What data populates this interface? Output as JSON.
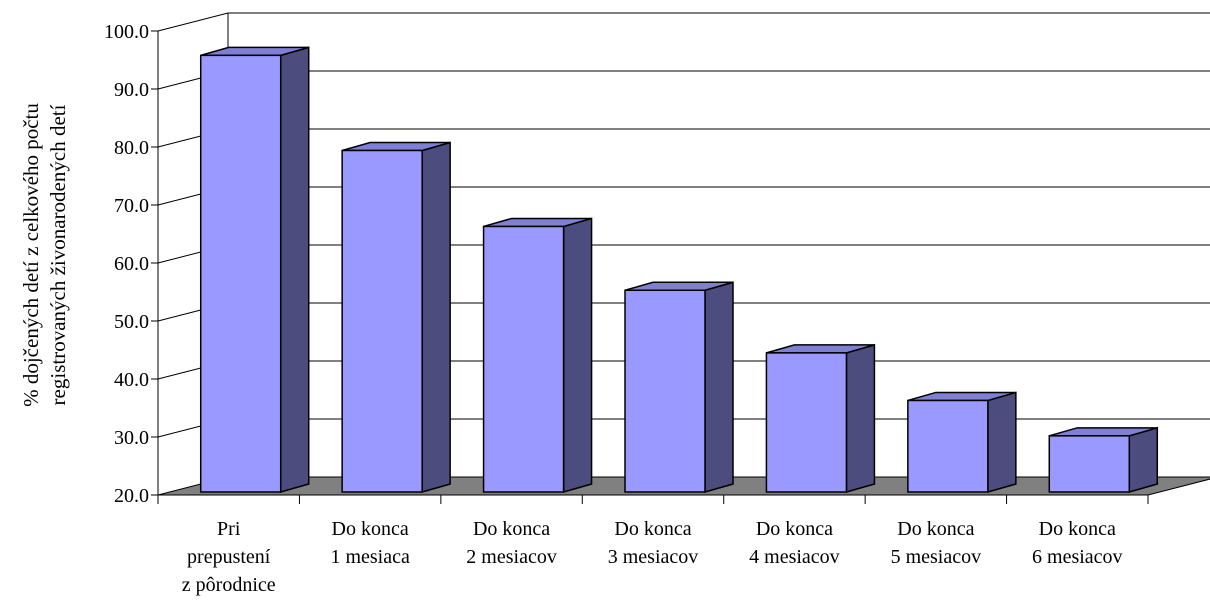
{
  "chart_data": {
    "type": "bar",
    "title": "",
    "xlabel": "",
    "ylabel": [
      "% dojčených detí z celkového počtu",
      "registrovaných živonarodených detí"
    ],
    "ylim": [
      20,
      100
    ],
    "yticks": [
      "20.0",
      "30.0",
      "40.0",
      "50.0",
      "60.0",
      "70.0",
      "80.0",
      "90.0",
      "100.0"
    ],
    "categories": [
      [
        "Pri",
        "prepustení",
        "z pôrodnice"
      ],
      [
        "Do konca",
        "1 mesiaca"
      ],
      [
        "Do konca",
        "2 mesiacov"
      ],
      [
        "Do konca",
        "3 mesiacov"
      ],
      [
        "Do konca",
        "4 mesiacov"
      ],
      [
        "Do konca",
        "5 mesiacov"
      ],
      [
        "Do konca",
        "6 mesiacov"
      ]
    ],
    "values": [
      95.8,
      79.4,
      66.3,
      55.3,
      44.5,
      36.3,
      30.2
    ],
    "grid": true,
    "legend": "none",
    "colors": {
      "bar_front": "#9999ff",
      "bar_side": "#4c4c7f",
      "bar_top": "#7f7fd4",
      "floor": "#808080",
      "grid": "#000000"
    }
  }
}
